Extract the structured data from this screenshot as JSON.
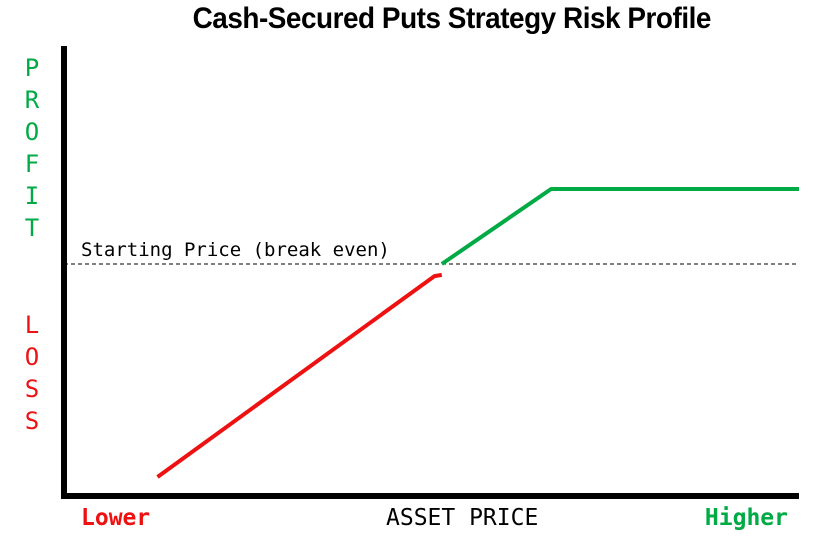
{
  "chart_data": {
    "type": "line",
    "title": "Cash-Secured Puts Strategy Risk Profile",
    "ylabel_top": "PROFIT",
    "ylabel_bottom": "LOSS",
    "xlabel": "ASSET PRICE",
    "x_low_label": "Lower",
    "x_high_label": "Higher",
    "reference_line": {
      "label": "Starting Price (break even)",
      "y": 0,
      "style": "dashed"
    },
    "xlim": [
      0,
      100
    ],
    "ylim": [
      -100,
      40
    ],
    "grid": false,
    "series": [
      {
        "color": "#ee1111",
        "points": [
          [
            12,
            -88
          ],
          [
            50,
            -5
          ],
          [
            51,
            -4.5
          ]
        ]
      },
      {
        "color": "#00aa44",
        "points": [
          [
            51,
            0
          ],
          [
            66,
            31
          ],
          [
            100,
            31
          ]
        ]
      }
    ],
    "colors": {
      "profit": "#00aa44",
      "loss": "#ee1111",
      "axis": "#000000"
    }
  }
}
